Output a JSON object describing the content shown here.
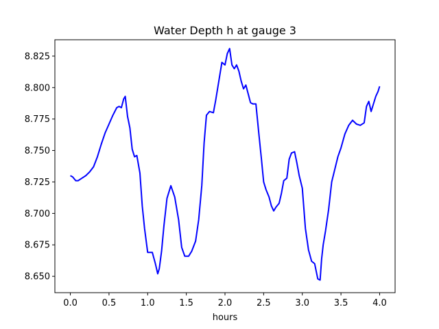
{
  "chart_data": {
    "type": "line",
    "title": "Water Depth h at gauge 3",
    "xlabel": "hours",
    "ylabel": "",
    "xlim": [
      -0.2,
      4.2
    ],
    "ylim": [
      8.637,
      8.838
    ],
    "xticks": [
      0.0,
      0.5,
      1.0,
      1.5,
      2.0,
      2.5,
      3.0,
      3.5,
      4.0
    ],
    "xtick_labels": [
      "0.0",
      "0.5",
      "1.0",
      "1.5",
      "2.0",
      "2.5",
      "3.0",
      "3.5",
      "4.0"
    ],
    "yticks": [
      8.65,
      8.675,
      8.7,
      8.725,
      8.75,
      8.775,
      8.8,
      8.825
    ],
    "ytick_labels": [
      "8.650",
      "8.675",
      "8.700",
      "8.725",
      "8.750",
      "8.775",
      "8.800",
      "8.825"
    ],
    "grid": false,
    "series": [
      {
        "color": "#0000ff",
        "x": [
          0.0,
          0.03,
          0.07,
          0.1,
          0.15,
          0.2,
          0.25,
          0.3,
          0.35,
          0.4,
          0.45,
          0.5,
          0.55,
          0.6,
          0.63,
          0.66,
          0.69,
          0.71,
          0.74,
          0.77,
          0.8,
          0.83,
          0.86,
          0.9,
          0.93,
          0.96,
          1.0,
          1.03,
          1.06,
          1.1,
          1.13,
          1.15,
          1.18,
          1.21,
          1.25,
          1.3,
          1.35,
          1.4,
          1.44,
          1.48,
          1.53,
          1.57,
          1.62,
          1.66,
          1.7,
          1.73,
          1.76,
          1.8,
          1.85,
          1.88,
          1.92,
          1.96,
          2.0,
          2.03,
          2.06,
          2.09,
          2.12,
          2.15,
          2.18,
          2.21,
          2.24,
          2.27,
          2.3,
          2.33,
          2.36,
          2.4,
          2.44,
          2.47,
          2.5,
          2.53,
          2.57,
          2.6,
          2.63,
          2.66,
          2.7,
          2.73,
          2.76,
          2.8,
          2.83,
          2.86,
          2.9,
          2.93,
          2.96,
          3.0,
          3.04,
          3.08,
          3.12,
          3.16,
          3.2,
          3.23,
          3.25,
          3.27,
          3.3,
          3.34,
          3.38,
          3.42,
          3.46,
          3.5,
          3.55,
          3.6,
          3.65,
          3.7,
          3.75,
          3.8,
          3.83,
          3.86,
          3.89,
          3.92,
          3.95,
          3.98,
          4.0
        ],
        "y": [
          8.73,
          8.729,
          8.726,
          8.726,
          8.728,
          8.73,
          8.733,
          8.737,
          8.745,
          8.755,
          8.764,
          8.771,
          8.778,
          8.784,
          8.785,
          8.784,
          8.791,
          8.793,
          8.777,
          8.768,
          8.751,
          8.745,
          8.746,
          8.732,
          8.706,
          8.688,
          8.669,
          8.669,
          8.669,
          8.66,
          8.652,
          8.656,
          8.67,
          8.69,
          8.712,
          8.722,
          8.713,
          8.695,
          8.673,
          8.666,
          8.666,
          8.67,
          8.678,
          8.695,
          8.722,
          8.756,
          8.778,
          8.781,
          8.78,
          8.79,
          8.805,
          8.82,
          8.818,
          8.827,
          8.831,
          8.818,
          8.815,
          8.818,
          8.813,
          8.805,
          8.799,
          8.802,
          8.795,
          8.788,
          8.787,
          8.787,
          8.762,
          8.744,
          8.725,
          8.719,
          8.713,
          8.706,
          8.702,
          8.705,
          8.708,
          8.716,
          8.726,
          8.728,
          8.743,
          8.748,
          8.749,
          8.74,
          8.73,
          8.72,
          8.688,
          8.671,
          8.662,
          8.66,
          8.648,
          8.647,
          8.664,
          8.675,
          8.686,
          8.703,
          8.725,
          8.735,
          8.745,
          8.752,
          8.763,
          8.77,
          8.774,
          8.771,
          8.77,
          8.772,
          8.785,
          8.789,
          8.781,
          8.787,
          8.793,
          8.797,
          8.801
        ]
      }
    ]
  }
}
